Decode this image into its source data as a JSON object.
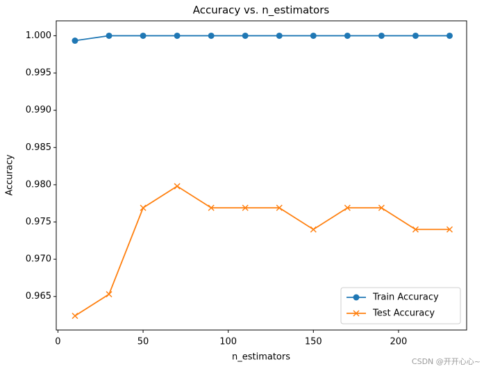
{
  "chart_data": {
    "type": "line",
    "title": "Accuracy vs. n_estimators",
    "x_label": "n_estimators",
    "y_label": "Accuracy",
    "x": [
      10,
      30,
      50,
      70,
      90,
      110,
      130,
      150,
      170,
      190,
      210,
      230
    ],
    "series": [
      {
        "name": "Train Accuracy",
        "color": "#1f77b4",
        "marker": "circle",
        "values": [
          0.99934,
          1.0,
          1.0,
          1.0,
          1.0,
          1.0,
          1.0,
          1.0,
          1.0,
          1.0,
          1.0,
          1.0
        ]
      },
      {
        "name": "Test Accuracy",
        "color": "#ff7f0e",
        "marker": "x",
        "values": [
          0.9624,
          0.9653,
          0.9769,
          0.9798,
          0.9769,
          0.9769,
          0.9769,
          0.974,
          0.9769,
          0.9769,
          0.974,
          0.974
        ]
      }
    ],
    "xlim": [
      -1,
      240
    ],
    "xticks": [
      0,
      50,
      100,
      150,
      200
    ],
    "ylim": [
      0.9605,
      1.002
    ],
    "yticks": [
      {
        "value": 0.965,
        "label": "0.965"
      },
      {
        "value": 0.97,
        "label": "0.970"
      },
      {
        "value": 0.975,
        "label": "0.975"
      },
      {
        "value": 0.98,
        "label": "0.980"
      },
      {
        "value": 0.985,
        "label": "0.985"
      },
      {
        "value": 0.99,
        "label": "0.990"
      },
      {
        "value": 0.995,
        "label": "0.995"
      },
      {
        "value": 1.0,
        "label": "1.000"
      }
    ],
    "legend": "lower right",
    "watermark": "CSDN @开开心心~"
  }
}
